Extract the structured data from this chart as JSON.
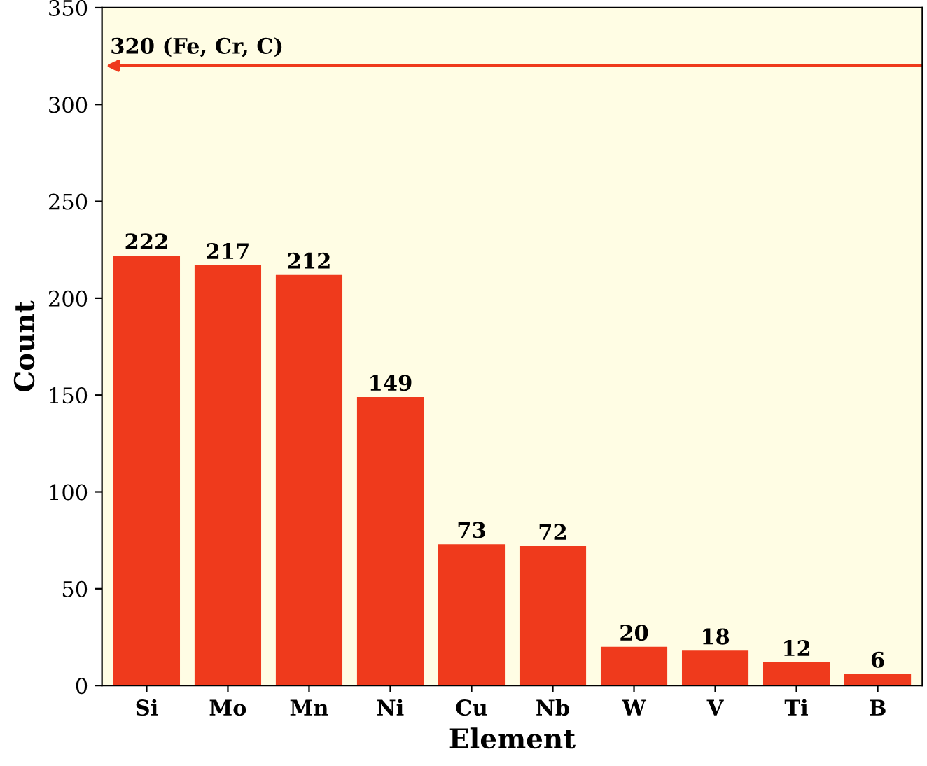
{
  "chart_data": {
    "type": "bar",
    "xlabel": "Element",
    "ylabel": "Count",
    "categories": [
      "Si",
      "Mo",
      "Mn",
      "Ni",
      "Cu",
      "Nb",
      "W",
      "V",
      "Ti",
      "B"
    ],
    "values": [
      222,
      217,
      212,
      149,
      73,
      72,
      20,
      18,
      12,
      6
    ],
    "color": "#ef3a1c",
    "ylim": [
      0,
      350
    ],
    "yticks": [
      0,
      50,
      100,
      150,
      200,
      250,
      300,
      350
    ],
    "data_labels": true,
    "grid": false,
    "legend": false,
    "ref_lines": [
      {
        "axis": "y",
        "value": 320,
        "label": "320 (Fe, Cr, C)",
        "color": "#ef3a1c"
      }
    ]
  }
}
